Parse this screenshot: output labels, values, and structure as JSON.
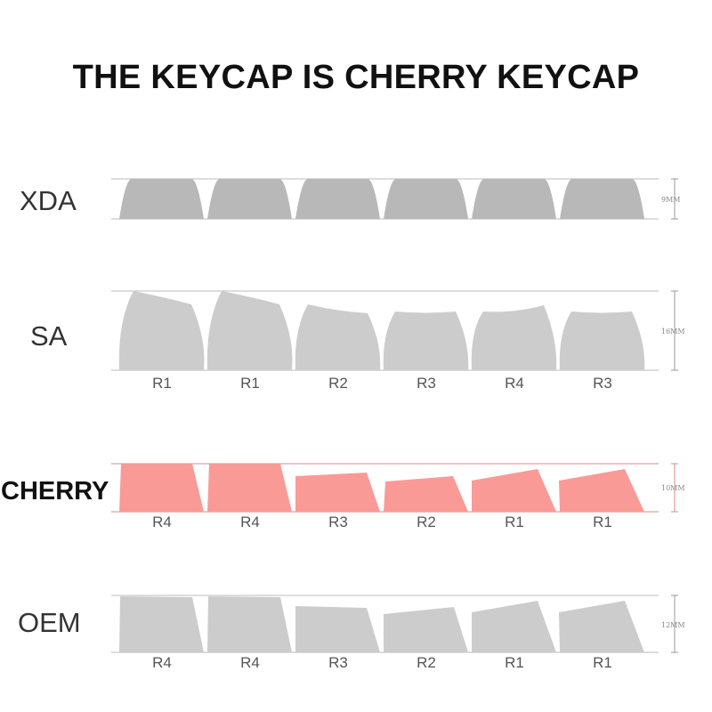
{
  "title": "THE KEYCAP IS CHERRY KEYCAP",
  "colors": {
    "highlight_fill": "#fa9a96",
    "highlight_line": "#e28a88",
    "keycap_gray": "#cccccc",
    "xda_gray": "#b8b8b8",
    "guide_line": "#bbbbbb"
  },
  "profiles": [
    {
      "name": "XDA",
      "height": "9MM",
      "rows": [],
      "highlight": false
    },
    {
      "name": "SA",
      "height": "16MM",
      "rows": [
        "R1",
        "R1",
        "R2",
        "R3",
        "R4",
        "R3"
      ],
      "highlight": false
    },
    {
      "name": "CHERRY",
      "height": "10MM",
      "rows": [
        "R4",
        "R4",
        "R3",
        "R2",
        "R1",
        "R1"
      ],
      "highlight": true
    },
    {
      "name": "OEM",
      "height": "12MM",
      "rows": [
        "R4",
        "R4",
        "R3",
        "R2",
        "R1",
        "R1"
      ],
      "highlight": false
    }
  ]
}
